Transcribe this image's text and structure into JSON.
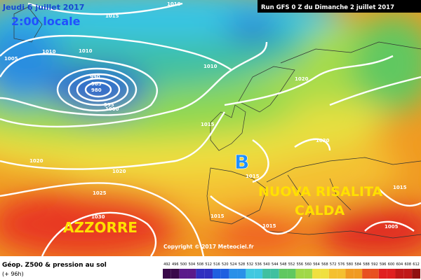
{
  "header": {
    "date": "Jeudi 6 juillet 2017",
    "time": "2:00 locale",
    "run": "Run GFS 0 Z du Dimanche 2 juillet 2017"
  },
  "map": {
    "isobar_labels": [
      1015,
      1010,
      1005,
      1010,
      990,
      985,
      980,
      995,
      1000,
      1010,
      1015,
      1020,
      1020,
      1025,
      1030,
      1015,
      1020,
      1020,
      1015,
      1015,
      1015,
      1005,
      1010
    ],
    "low_marker": "B",
    "annotations": [
      "AZZORRE",
      "NUOVA RISALITA",
      "CALDA"
    ],
    "copyright": "Copyright © 2017 Meteociel.fr"
  },
  "footer": {
    "title": "Géop. Z500 & pression au sol",
    "lead": "(+ 96h)",
    "scale": [
      492,
      496,
      500,
      504,
      508,
      512,
      516,
      520,
      524,
      528,
      532,
      536,
      540,
      544,
      548,
      552,
      556,
      560,
      564,
      568,
      572,
      576,
      580,
      584,
      588,
      592,
      596,
      600,
      604,
      608,
      612
    ]
  }
}
